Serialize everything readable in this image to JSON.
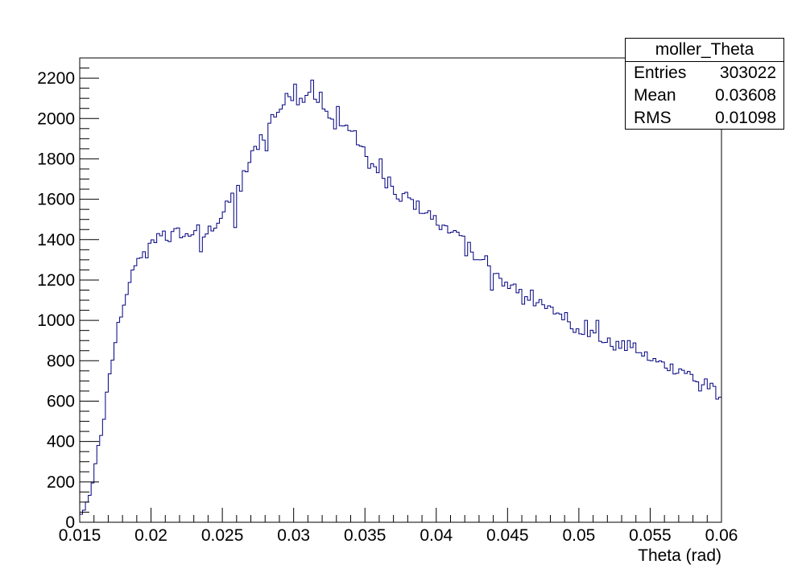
{
  "chart_data": {
    "type": "bar",
    "histogram_name": "moller_Theta",
    "xlabel": "Theta (rad)",
    "ylabel": "",
    "xlim": [
      0.015,
      0.06
    ],
    "ylim": [
      0,
      2300
    ],
    "bin_width": 0.0002,
    "x_ticks": [
      "0.015",
      "0.02",
      "0.025",
      "0.03",
      "0.035",
      "0.04",
      "0.045",
      "0.05",
      "0.055",
      "0.06"
    ],
    "y_ticks": [
      "0",
      "200",
      "400",
      "600",
      "800",
      "1000",
      "1200",
      "1400",
      "1600",
      "1800",
      "2000",
      "2200"
    ],
    "stats": {
      "entries_label": "Entries",
      "entries": "303022",
      "mean_label": "Mean",
      "mean": "0.03608",
      "rms_label": "RMS",
      "rms": "0.01098"
    },
    "color": "#000080",
    "anchors": [
      [
        0.015,
        40
      ],
      [
        0.0152,
        40
      ],
      [
        0.0155,
        100
      ],
      [
        0.0158,
        150
      ],
      [
        0.016,
        240
      ],
      [
        0.0162,
        340
      ],
      [
        0.0164,
        420
      ],
      [
        0.0166,
        440
      ],
      [
        0.0168,
        580
      ],
      [
        0.017,
        710
      ],
      [
        0.0172,
        760
      ],
      [
        0.0175,
        890
      ],
      [
        0.0177,
        990
      ],
      [
        0.018,
        1030
      ],
      [
        0.0183,
        1140
      ],
      [
        0.0186,
        1200
      ],
      [
        0.019,
        1280
      ],
      [
        0.0193,
        1330
      ],
      [
        0.0196,
        1310
      ],
      [
        0.02,
        1380
      ],
      [
        0.0204,
        1400
      ],
      [
        0.0208,
        1450
      ],
      [
        0.0212,
        1400
      ],
      [
        0.0216,
        1430
      ],
      [
        0.022,
        1440
      ],
      [
        0.0224,
        1410
      ],
      [
        0.0228,
        1430
      ],
      [
        0.0232,
        1460
      ],
      [
        0.0236,
        1410
      ],
      [
        0.024,
        1440
      ],
      [
        0.0244,
        1470
      ],
      [
        0.0248,
        1500
      ],
      [
        0.0252,
        1550
      ],
      [
        0.0256,
        1600
      ],
      [
        0.026,
        1660
      ],
      [
        0.0264,
        1710
      ],
      [
        0.0268,
        1760
      ],
      [
        0.0272,
        1840
      ],
      [
        0.0276,
        1880
      ],
      [
        0.028,
        1930
      ],
      [
        0.0284,
        2000
      ],
      [
        0.0288,
        2030
      ],
      [
        0.0292,
        2060
      ],
      [
        0.0296,
        2110
      ],
      [
        0.03,
        2120
      ],
      [
        0.0304,
        2080
      ],
      [
        0.0308,
        2120
      ],
      [
        0.0312,
        2150
      ],
      [
        0.0316,
        2100
      ],
      [
        0.032,
        2060
      ],
      [
        0.0324,
        2000
      ],
      [
        0.0328,
        1980
      ],
      [
        0.0332,
        1970
      ],
      [
        0.0336,
        1960
      ],
      [
        0.034,
        1950
      ],
      [
        0.0344,
        1900
      ],
      [
        0.0348,
        1850
      ],
      [
        0.0352,
        1790
      ],
      [
        0.0356,
        1760
      ],
      [
        0.036,
        1730
      ],
      [
        0.0364,
        1680
      ],
      [
        0.0368,
        1640
      ],
      [
        0.0372,
        1620
      ],
      [
        0.0376,
        1620
      ],
      [
        0.038,
        1610
      ],
      [
        0.0384,
        1580
      ],
      [
        0.0388,
        1560
      ],
      [
        0.0392,
        1540
      ],
      [
        0.0396,
        1520
      ],
      [
        0.04,
        1490
      ],
      [
        0.0404,
        1480
      ],
      [
        0.0408,
        1470
      ],
      [
        0.0412,
        1440
      ],
      [
        0.0416,
        1410
      ],
      [
        0.042,
        1380
      ],
      [
        0.0424,
        1360
      ],
      [
        0.0428,
        1320
      ],
      [
        0.0432,
        1300
      ],
      [
        0.0436,
        1270
      ],
      [
        0.044,
        1230
      ],
      [
        0.0444,
        1200
      ],
      [
        0.0448,
        1190
      ],
      [
        0.0452,
        1170
      ],
      [
        0.0456,
        1150
      ],
      [
        0.046,
        1140
      ],
      [
        0.0464,
        1120
      ],
      [
        0.0468,
        1100
      ],
      [
        0.0472,
        1080
      ],
      [
        0.0476,
        1060
      ],
      [
        0.048,
        1050
      ],
      [
        0.0484,
        1040
      ],
      [
        0.0488,
        1030
      ],
      [
        0.0492,
        1010
      ],
      [
        0.0496,
        980
      ],
      [
        0.05,
        960
      ],
      [
        0.0504,
        950
      ],
      [
        0.0508,
        940
      ],
      [
        0.0512,
        920
      ],
      [
        0.0516,
        900
      ],
      [
        0.052,
        890
      ],
      [
        0.0524,
        880
      ],
      [
        0.0528,
        870
      ],
      [
        0.0532,
        870
      ],
      [
        0.0536,
        860
      ],
      [
        0.054,
        860
      ],
      [
        0.0544,
        840
      ],
      [
        0.0548,
        820
      ],
      [
        0.0552,
        800
      ],
      [
        0.0556,
        790
      ],
      [
        0.056,
        780
      ],
      [
        0.0564,
        770
      ],
      [
        0.0568,
        760
      ],
      [
        0.0572,
        760
      ],
      [
        0.0576,
        740
      ],
      [
        0.058,
        720
      ],
      [
        0.0584,
        700
      ],
      [
        0.0588,
        680
      ],
      [
        0.0592,
        670
      ],
      [
        0.0596,
        640
      ],
      [
        0.06,
        620
      ]
    ],
    "spikes": [
      [
        0.0313,
        2190
      ],
      [
        0.0301,
        2170
      ],
      [
        0.0319,
        2130
      ],
      [
        0.033,
        2060
      ],
      [
        0.0317,
        2080
      ],
      [
        0.0276,
        1920
      ],
      [
        0.0281,
        1840
      ],
      [
        0.0262,
        1640
      ],
      [
        0.0258,
        1460
      ],
      [
        0.0234,
        1340
      ],
      [
        0.0197,
        1310
      ],
      [
        0.0375,
        1590
      ],
      [
        0.0361,
        1800
      ],
      [
        0.0366,
        1710
      ],
      [
        0.0402,
        1450
      ],
      [
        0.042,
        1320
      ],
      [
        0.0431,
        1300
      ],
      [
        0.0434,
        1220
      ],
      [
        0.0435,
        1320
      ],
      [
        0.0439,
        1150
      ],
      [
        0.0455,
        1180
      ],
      [
        0.0462,
        1080
      ],
      [
        0.0467,
        1150
      ],
      [
        0.0497,
        940
      ],
      [
        0.0504,
        1000
      ],
      [
        0.0513,
        1000
      ],
      [
        0.0517,
        890
      ],
      [
        0.0535,
        900
      ],
      [
        0.0543,
        840
      ],
      [
        0.055,
        800
      ],
      [
        0.058,
        700
      ],
      [
        0.0585,
        650
      ],
      [
        0.059,
        710
      ],
      [
        0.0596,
        610
      ]
    ]
  }
}
